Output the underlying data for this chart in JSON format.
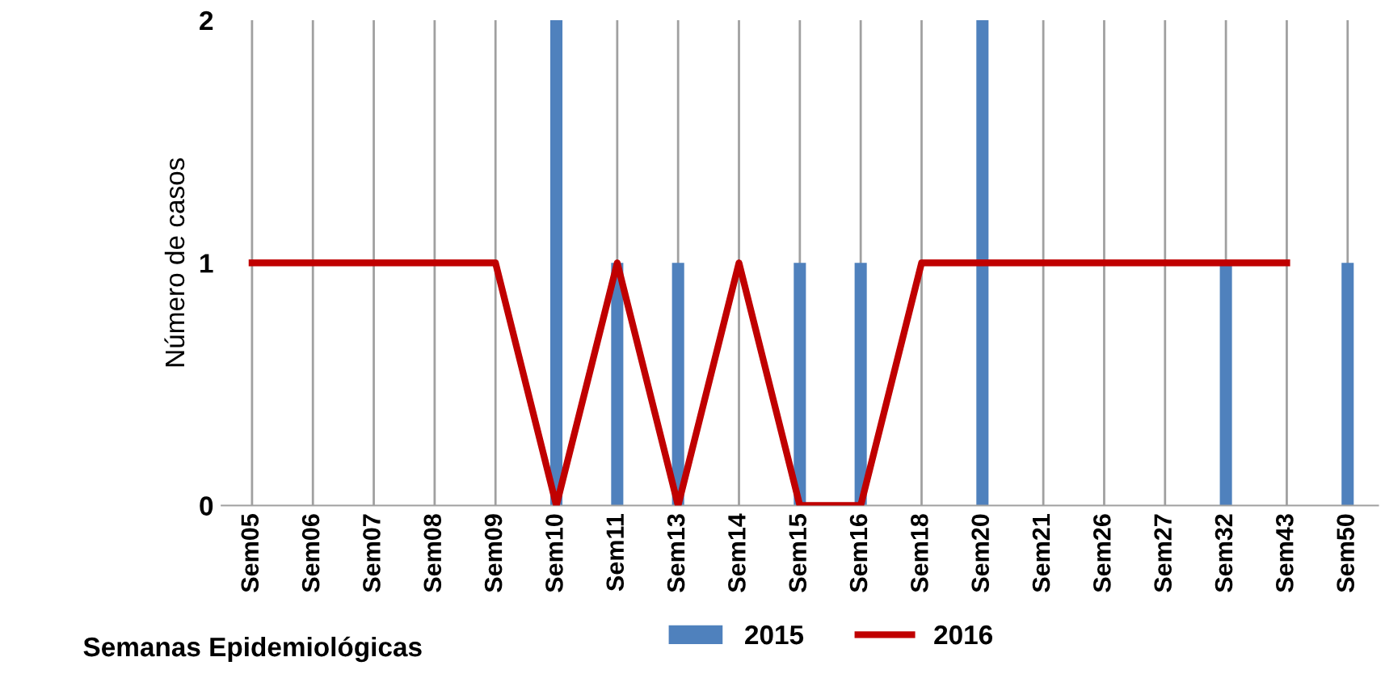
{
  "chart_data": {
    "type": "bar",
    "xlabel": "Semanas Epidemiológicas",
    "ylabel": "Número de casos",
    "categories": [
      "Sem05",
      "Sem06",
      "Sem07",
      "Sem08",
      "Sem09",
      "Sem10",
      "Sem11",
      "Sem13",
      "Sem14",
      "Sem15",
      "Sem16",
      "Sem18",
      "Sem20",
      "Sem21",
      "Sem26",
      "Sem27",
      "Sem32",
      "Sem43",
      "Sem50"
    ],
    "series": [
      {
        "name": "2015",
        "color": "#4f81bd",
        "values": [
          0,
          0,
          0,
          0,
          0,
          2,
          1,
          1,
          0,
          1,
          1,
          0,
          2,
          0,
          0,
          0,
          1,
          0,
          1
        ]
      },
      {
        "name": "2016",
        "type": "line",
        "color": "#c00000",
        "line_style": "solid",
        "values": [
          1,
          1,
          1,
          1,
          1,
          0,
          1,
          0,
          1,
          0,
          0,
          1,
          1,
          1,
          1,
          1,
          1,
          1,
          null
        ]
      }
    ],
    "ylim": [
      0,
      2
    ],
    "yticks": [
      0,
      1,
      2
    ],
    "grid": "x",
    "legend": "bottom",
    "marker": "none"
  }
}
